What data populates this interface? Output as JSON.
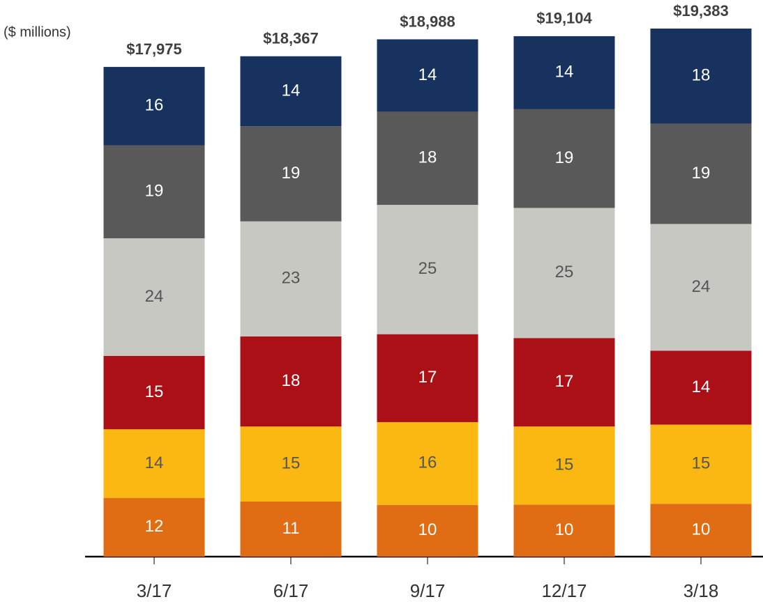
{
  "chart_data": {
    "type": "stacked_bar",
    "unit_label": "($ millions)",
    "categories": [
      "3/17",
      "6/17",
      "9/17",
      "12/17",
      "3/18"
    ],
    "totals": {
      "values": [
        17975,
        18367,
        18988,
        19104,
        19383
      ],
      "value_labels": [
        "$17,975",
        "$18,367",
        "$18,988",
        "$19,104",
        "$19,383"
      ]
    },
    "series": [
      {
        "color": "#e06c14",
        "values": [
          12,
          11,
          10,
          10,
          10
        ]
      },
      {
        "color": "#fbb812",
        "values": [
          14,
          15,
          16,
          15,
          15
        ]
      },
      {
        "color": "#ab1016",
        "values": [
          15,
          18,
          17,
          17,
          14
        ]
      },
      {
        "color": "#c8c8c3",
        "values": [
          24,
          23,
          25,
          25,
          24
        ]
      },
      {
        "color": "#595959",
        "values": [
          19,
          19,
          18,
          19,
          19
        ]
      },
      {
        "color": "#17325f",
        "values": [
          16,
          14,
          14,
          14,
          18
        ]
      }
    ]
  }
}
